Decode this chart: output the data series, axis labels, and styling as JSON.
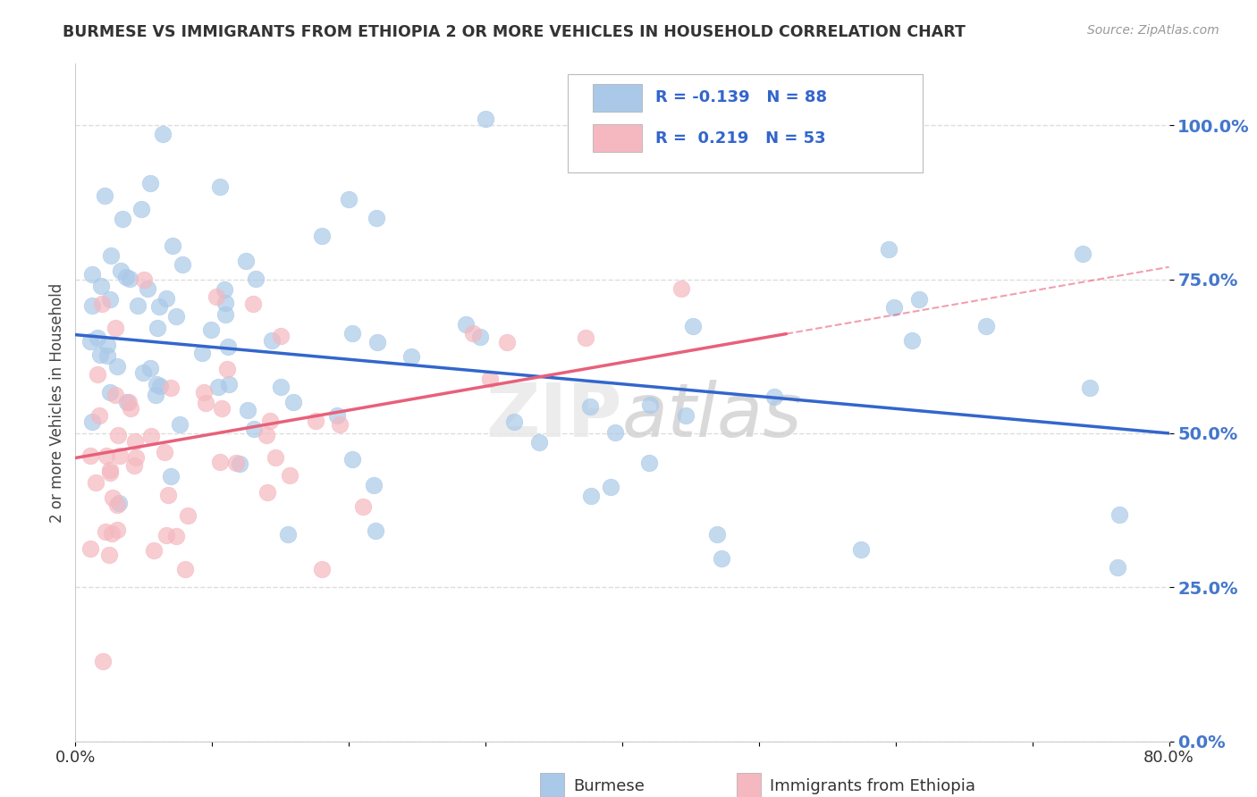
{
  "title": "BURMESE VS IMMIGRANTS FROM ETHIOPIA 2 OR MORE VEHICLES IN HOUSEHOLD CORRELATION CHART",
  "source": "Source: ZipAtlas.com",
  "ylabel": "2 or more Vehicles in Household",
  "xlim": [
    0.0,
    0.8
  ],
  "ylim": [
    0.0,
    1.1
  ],
  "yticks": [
    0.0,
    0.25,
    0.5,
    0.75,
    1.0
  ],
  "ytick_labels": [
    "0.0%",
    "25.0%",
    "50.0%",
    "75.0%",
    "100.0%"
  ],
  "blue_R": -0.139,
  "blue_N": 88,
  "pink_R": 0.219,
  "pink_N": 53,
  "legend_label_blue": "Burmese",
  "legend_label_pink": "Immigrants from Ethiopia",
  "blue_color": "#aac9e8",
  "pink_color": "#f5b8c0",
  "blue_line_color": "#3366cc",
  "pink_line_color": "#e8607a",
  "watermark": "ZIPatlas",
  "blue_line_x0": 0.0,
  "blue_line_y0": 0.66,
  "blue_line_x1": 0.8,
  "blue_line_y1": 0.5,
  "blue_line_solid_end": 0.5,
  "pink_line_x0": 0.0,
  "pink_line_y0": 0.46,
  "pink_line_x1": 0.8,
  "pink_line_y1": 0.77,
  "pink_line_solid_end": 0.52
}
